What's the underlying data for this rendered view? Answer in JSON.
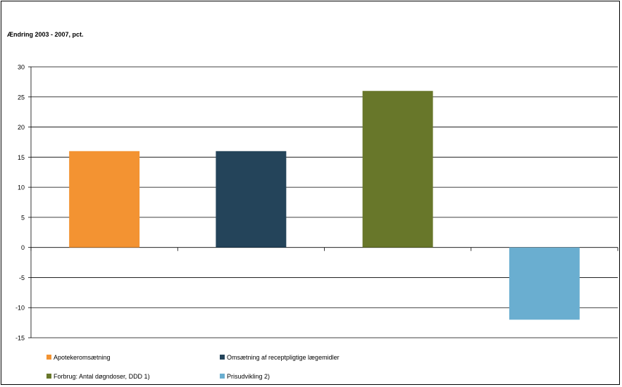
{
  "chart_data": {
    "type": "bar",
    "title": "Ændring 2003 - 2007, pct.",
    "xlabel": "",
    "ylabel": "",
    "ylim": [
      -15,
      30
    ],
    "yticks": [
      30,
      25,
      20,
      15,
      10,
      5,
      0,
      -5,
      -10,
      -15
    ],
    "grid": true,
    "legend_position": "bottom",
    "categories": [
      "Apotekeromsætning",
      "Omsætning af receptpligtige lægemidler",
      "Forbrug: Antal døgndoser, DDD 1)",
      "Prisudvikling 2)"
    ],
    "values": [
      16,
      16,
      26,
      -12
    ],
    "colors": [
      "#f39332",
      "#24445a",
      "#68772a",
      "#6aaed0"
    ]
  }
}
